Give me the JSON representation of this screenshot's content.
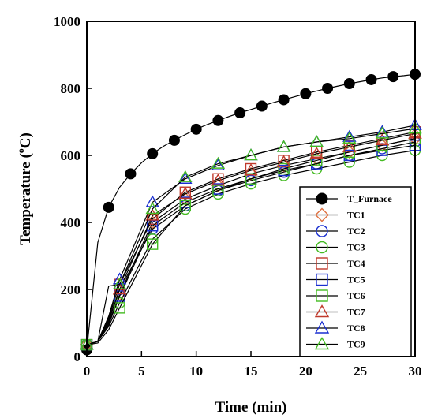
{
  "chart_data": {
    "type": "line",
    "xlabel": "Time (min)",
    "ylabel": "Temperature (",
    "ylabel_sup": "o",
    "ylabel_suffix": "C)",
    "xlim": [
      0,
      30
    ],
    "ylim": [
      0,
      1000
    ],
    "x_ticks": [
      0,
      5,
      10,
      15,
      20,
      25,
      30
    ],
    "y_ticks": [
      0,
      200,
      400,
      600,
      800,
      1000
    ],
    "x_tick_labels": [
      "0",
      "5",
      "10",
      "15",
      "20",
      "25",
      "30"
    ],
    "y_tick_labels": [
      "0",
      "200",
      "400",
      "600",
      "800",
      "1000"
    ],
    "grid": false,
    "legend_position": "bottom-right",
    "series": [
      {
        "name": "T_Furnace",
        "color": "#000000",
        "marker": "filled-circle",
        "x": [
          0,
          1,
          2,
          3,
          4,
          5,
          6,
          7,
          8,
          9,
          10,
          11,
          12,
          13,
          14,
          15,
          16,
          17,
          18,
          19,
          20,
          21,
          22,
          23,
          24,
          25,
          26,
          27,
          28,
          29,
          30
        ],
        "y": [
          20,
          340,
          445,
          505,
          545,
          578,
          605,
          627,
          645,
          662,
          678,
          692,
          704,
          716,
          727,
          737,
          747,
          757,
          766,
          775,
          784,
          792,
          800,
          807,
          814,
          820,
          826,
          831,
          835,
          838,
          842
        ],
        "marker_x": [
          0,
          2,
          4,
          6,
          8,
          10,
          12,
          14,
          16,
          18,
          20,
          22,
          24,
          26,
          28,
          30
        ]
      },
      {
        "name": "TC1",
        "color": "#e07040",
        "marker": "diamond",
        "x": [
          0,
          1,
          2,
          3,
          6,
          9,
          12,
          15,
          18,
          21,
          24,
          27,
          30
        ],
        "y": [
          35,
          45,
          100,
          185,
          400,
          470,
          510,
          545,
          570,
          590,
          610,
          630,
          650
        ],
        "marker_x": [
          0,
          3,
          6,
          9,
          12,
          15,
          18,
          21,
          24,
          27,
          30
        ]
      },
      {
        "name": "TC2",
        "color": "#1a2fd0",
        "marker": "circle",
        "x": [
          0,
          1,
          2,
          3,
          6,
          9,
          12,
          15,
          18,
          21,
          24,
          27,
          30
        ],
        "y": [
          35,
          45,
          110,
          200,
          380,
          450,
          495,
          525,
          550,
          575,
          600,
          620,
          640
        ],
        "marker_x": [
          0,
          3,
          6,
          9,
          12,
          15,
          18,
          21,
          24,
          27,
          30
        ]
      },
      {
        "name": "TC3",
        "color": "#44bb22",
        "marker": "circle",
        "x": [
          0,
          1,
          2,
          3,
          6,
          9,
          12,
          15,
          18,
          21,
          24,
          27,
          30
        ],
        "y": [
          35,
          45,
          90,
          160,
          350,
          440,
          485,
          515,
          540,
          560,
          580,
          600,
          615
        ],
        "marker_x": [
          0,
          3,
          6,
          9,
          12,
          15,
          18,
          21,
          24,
          27,
          30
        ]
      },
      {
        "name": "TC4",
        "color": "#c0392b",
        "marker": "square",
        "x": [
          0,
          1,
          2,
          3,
          6,
          9,
          12,
          15,
          18,
          21,
          24,
          27,
          30
        ],
        "y": [
          35,
          45,
          115,
          215,
          410,
          490,
          530,
          560,
          585,
          610,
          630,
          650,
          670
        ],
        "marker_x": [
          0,
          3,
          6,
          9,
          12,
          15,
          18,
          21,
          24,
          27,
          30
        ]
      },
      {
        "name": "TC5",
        "color": "#1a2fd0",
        "marker": "square",
        "x": [
          0,
          1,
          2,
          3,
          6,
          9,
          12,
          15,
          18,
          21,
          24,
          27,
          30
        ],
        "y": [
          35,
          45,
          95,
          180,
          390,
          460,
          500,
          530,
          555,
          575,
          600,
          615,
          630
        ],
        "marker_x": [
          0,
          3,
          6,
          9,
          12,
          15,
          18,
          21,
          24,
          27,
          30
        ]
      },
      {
        "name": "TC6",
        "color": "#44bb22",
        "marker": "square",
        "x": [
          0,
          1,
          2,
          3,
          6,
          9,
          12,
          15,
          18,
          21,
          24,
          27,
          30
        ],
        "y": [
          35,
          40,
          80,
          145,
          335,
          450,
          495,
          530,
          560,
          585,
          610,
          630,
          650
        ],
        "marker_x": [
          0,
          3,
          6,
          9,
          12,
          15,
          18,
          21,
          24,
          27,
          30
        ]
      },
      {
        "name": "TC7",
        "color": "#c0392b",
        "marker": "triangle",
        "x": [
          0,
          1,
          2,
          3,
          6,
          9,
          12,
          15,
          18,
          21,
          24,
          27,
          30
        ],
        "y": [
          35,
          45,
          105,
          200,
          420,
          485,
          525,
          555,
          580,
          605,
          625,
          645,
          665
        ],
        "marker_x": [
          0,
          3,
          6,
          9,
          12,
          15,
          18,
          21,
          24,
          27,
          30
        ]
      },
      {
        "name": "TC8",
        "color": "#1a2fd0",
        "marker": "triangle",
        "x": [
          0,
          1,
          2,
          3,
          6,
          9,
          12,
          15,
          18,
          21,
          24,
          27,
          30
        ],
        "y": [
          35,
          45,
          120,
          230,
          460,
          530,
          570,
          600,
          625,
          640,
          655,
          670,
          690
        ],
        "marker_x": [
          0,
          3,
          6,
          9,
          12,
          15,
          18,
          21,
          24,
          27,
          30
        ]
      },
      {
        "name": "TC9",
        "color": "#44bb22",
        "marker": "triangle",
        "x": [
          0,
          1,
          2,
          3,
          6,
          9,
          12,
          15,
          18,
          21,
          24,
          27,
          30
        ],
        "y": [
          35,
          45,
          210,
          215,
          440,
          535,
          575,
          600,
          625,
          640,
          650,
          665,
          680
        ],
        "marker_x": [
          0,
          3,
          6,
          9,
          12,
          15,
          18,
          21,
          24,
          27,
          30
        ]
      }
    ]
  }
}
